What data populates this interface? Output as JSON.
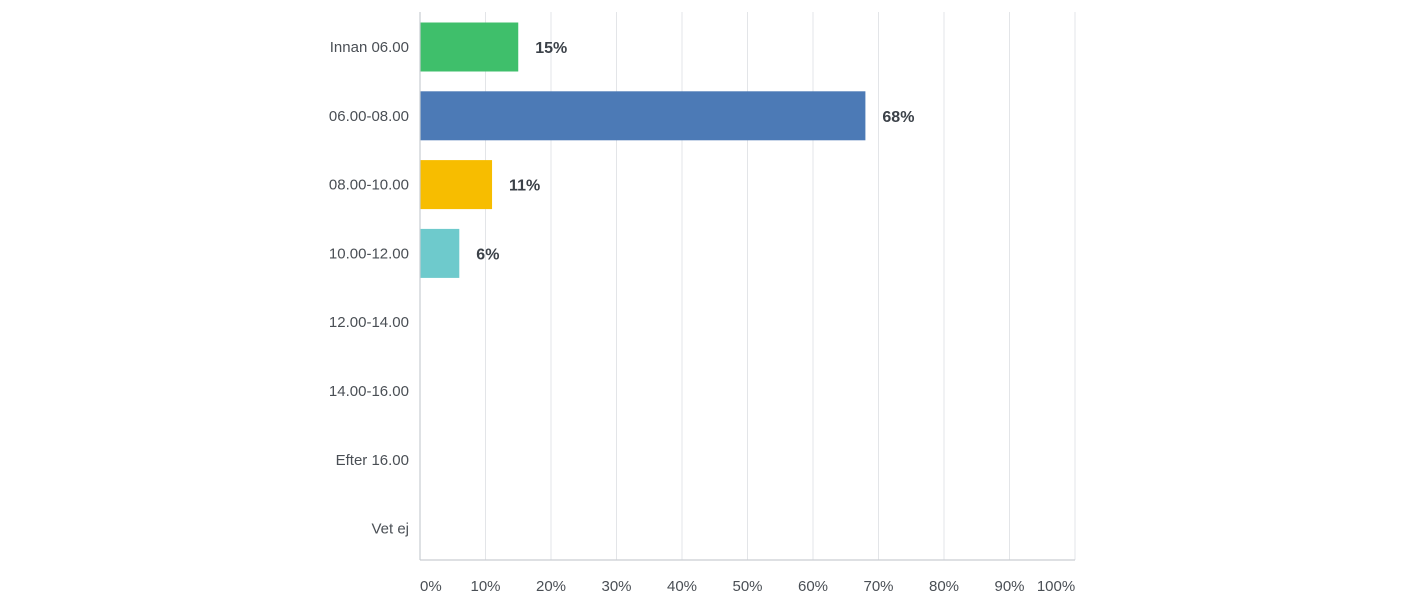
{
  "chart_data": {
    "type": "bar",
    "orientation": "horizontal",
    "title": "",
    "xlabel": "",
    "ylabel": "",
    "categories": [
      "Innan 06.00",
      "06.00-08.00",
      "08.00-10.00",
      "10.00-12.00",
      "12.00-14.00",
      "14.00-16.00",
      "Efter 16.00",
      "Vet ej"
    ],
    "values": [
      15,
      68,
      11,
      6,
      0,
      0,
      0,
      0
    ],
    "value_labels": [
      "15%",
      "68%",
      "11%",
      "6%",
      "",
      "",
      "",
      ""
    ],
    "colors": [
      "#3fbf6b",
      "#4c7ab6",
      "#f7bd00",
      "#6ecacc",
      "",
      "",
      "",
      ""
    ],
    "xlim": [
      0,
      100
    ],
    "ticks": [
      0,
      10,
      20,
      30,
      40,
      50,
      60,
      70,
      80,
      90,
      100
    ],
    "tick_labels": [
      "0%",
      "10%",
      "20%",
      "30%",
      "40%",
      "50%",
      "60%",
      "70%",
      "80%",
      "90%",
      "100%"
    ],
    "grid": true,
    "legend": "none"
  }
}
